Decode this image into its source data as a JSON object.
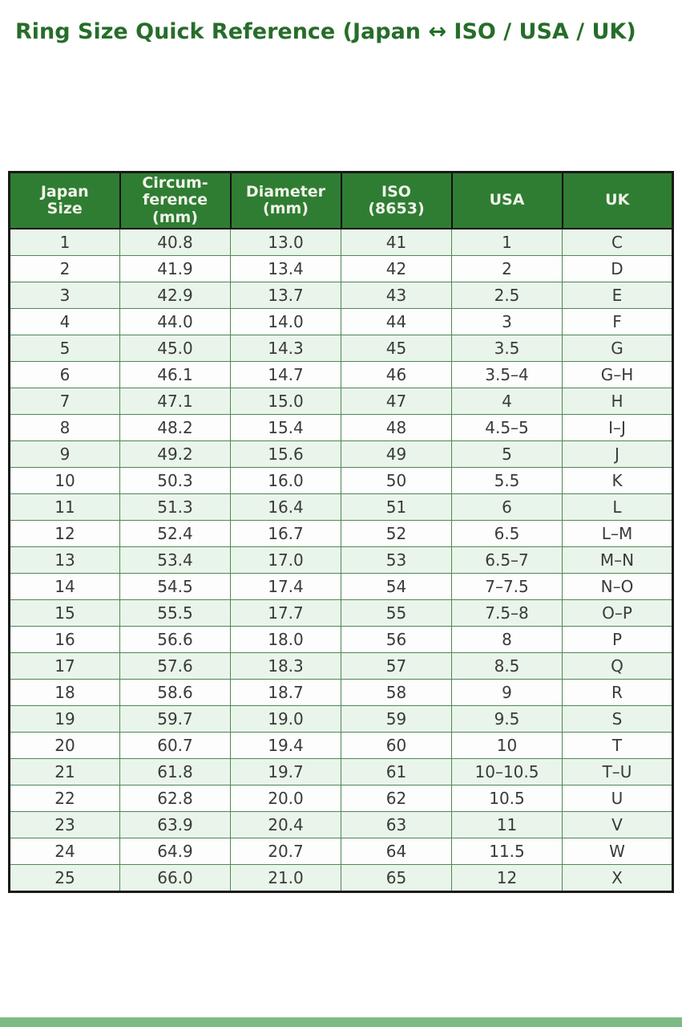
{
  "page": {
    "title": "Ring Size Quick Reference (Japan ↔ ISO / USA / UK)"
  },
  "colors": {
    "title_green": "#266d2a",
    "header_bg": "#2f7d32",
    "header_text": "#f1f3ea",
    "row_alt_bg": "#e9f5ea",
    "row_bg": "#fdfdfd",
    "grid_green": "#4f8757",
    "outer_border": "#1a1a1a",
    "body_text": "#3a3a3a",
    "footer_bar": "#7dbb84"
  },
  "table": {
    "headers": [
      "Japan\nSize",
      "Circum-\nference\n(mm)",
      "Diameter\n(mm)",
      "ISO\n(8653)",
      "USA",
      "UK"
    ],
    "column_keys": [
      "japan-size",
      "circumference-mm",
      "diameter-mm",
      "iso-8653",
      "usa",
      "uk"
    ],
    "rows": [
      [
        "1",
        "40.8",
        "13.0",
        "41",
        "1",
        "C"
      ],
      [
        "2",
        "41.9",
        "13.4",
        "42",
        "2",
        "D"
      ],
      [
        "3",
        "42.9",
        "13.7",
        "43",
        "2.5",
        "E"
      ],
      [
        "4",
        "44.0",
        "14.0",
        "44",
        "3",
        "F"
      ],
      [
        "5",
        "45.0",
        "14.3",
        "45",
        "3.5",
        "G"
      ],
      [
        "6",
        "46.1",
        "14.7",
        "46",
        "3.5–4",
        "G–H"
      ],
      [
        "7",
        "47.1",
        "15.0",
        "47",
        "4",
        "H"
      ],
      [
        "8",
        "48.2",
        "15.4",
        "48",
        "4.5–5",
        "I–J"
      ],
      [
        "9",
        "49.2",
        "15.6",
        "49",
        "5",
        "J"
      ],
      [
        "10",
        "50.3",
        "16.0",
        "50",
        "5.5",
        "K"
      ],
      [
        "11",
        "51.3",
        "16.4",
        "51",
        "6",
        "L"
      ],
      [
        "12",
        "52.4",
        "16.7",
        "52",
        "6.5",
        "L–M"
      ],
      [
        "13",
        "53.4",
        "17.0",
        "53",
        "6.5–7",
        "M–N"
      ],
      [
        "14",
        "54.5",
        "17.4",
        "54",
        "7–7.5",
        "N–O"
      ],
      [
        "15",
        "55.5",
        "17.7",
        "55",
        "7.5–8",
        "O–P"
      ],
      [
        "16",
        "56.6",
        "18.0",
        "56",
        "8",
        "P"
      ],
      [
        "17",
        "57.6",
        "18.3",
        "57",
        "8.5",
        "Q"
      ],
      [
        "18",
        "58.6",
        "18.7",
        "58",
        "9",
        "R"
      ],
      [
        "19",
        "59.7",
        "19.0",
        "59",
        "9.5",
        "S"
      ],
      [
        "20",
        "60.7",
        "19.4",
        "60",
        "10",
        "T"
      ],
      [
        "21",
        "61.8",
        "19.7",
        "61",
        "10–10.5",
        "T–U"
      ],
      [
        "22",
        "62.8",
        "20.0",
        "62",
        "10.5",
        "U"
      ],
      [
        "23",
        "63.9",
        "20.4",
        "63",
        "11",
        "V"
      ],
      [
        "24",
        "64.9",
        "20.7",
        "64",
        "11.5",
        "W"
      ],
      [
        "25",
        "66.0",
        "21.0",
        "65",
        "12",
        "X"
      ]
    ]
  }
}
